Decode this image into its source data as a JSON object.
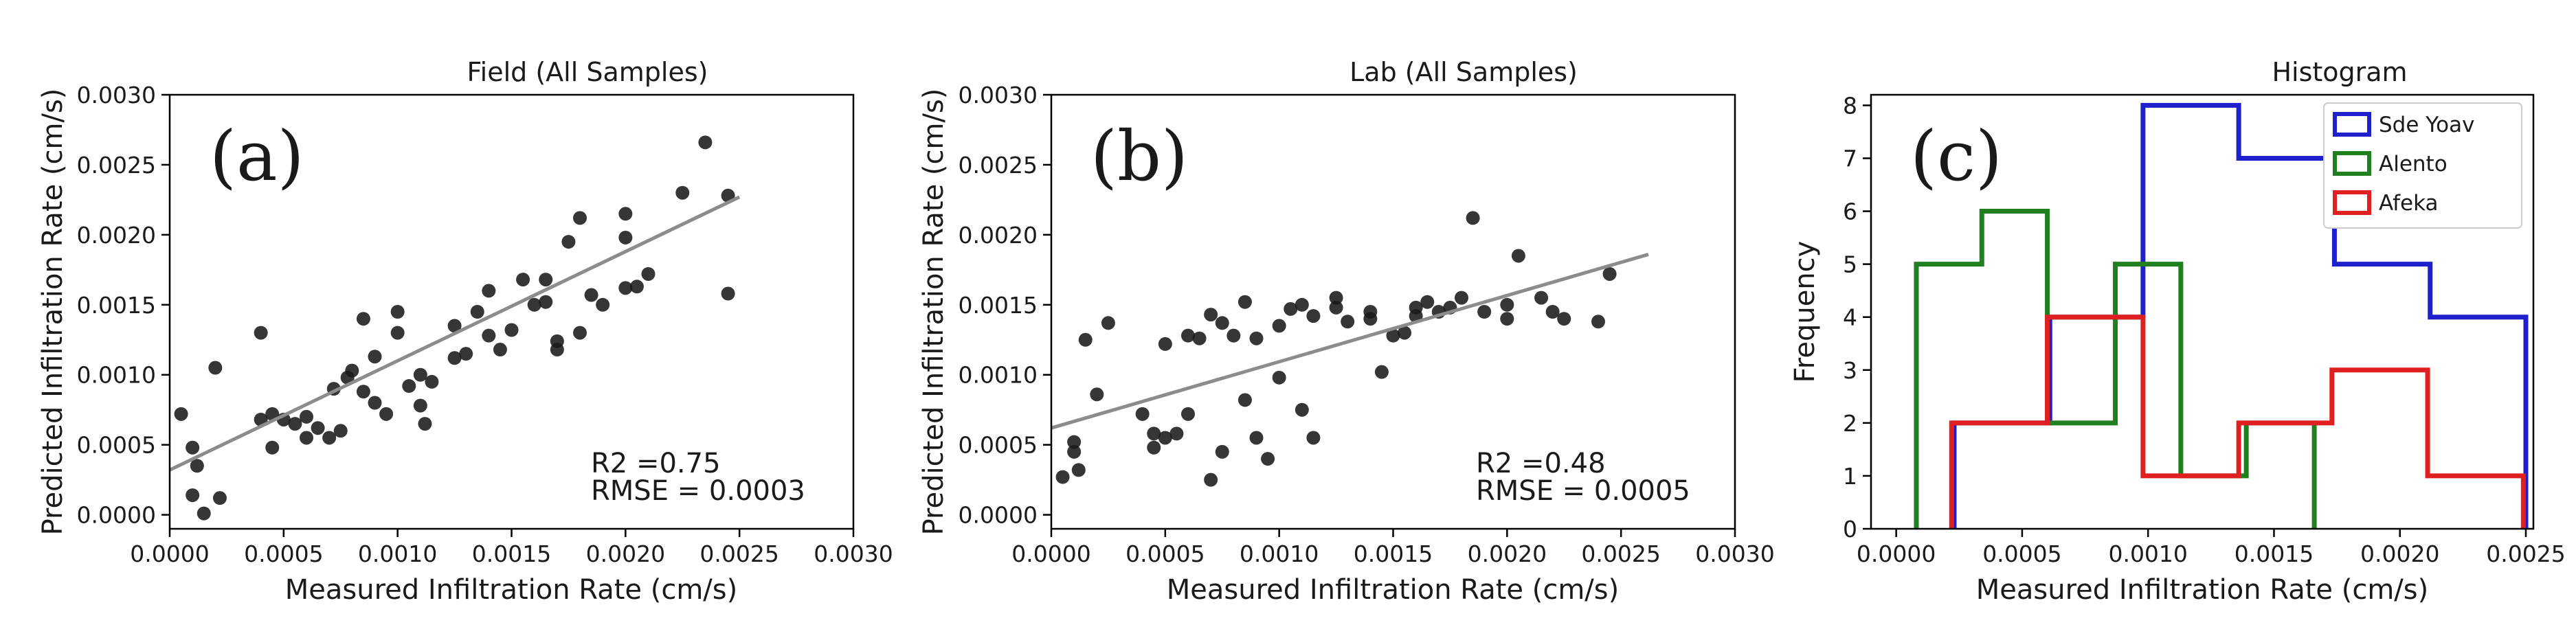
{
  "figure": {
    "panels": [
      "a",
      "b",
      "c"
    ]
  },
  "chart_data": [
    {
      "type": "scatter",
      "panel_label": "(a)",
      "title": "Field (All Samples)",
      "xlabel": "Measured Infiltration Rate (cm/s)",
      "ylabel": "Predicted Infiltration Rate (cm/s)",
      "xlim": [
        0,
        0.003
      ],
      "ylim": [
        -0.0001,
        0.003
      ],
      "xticks": [
        "0.0000",
        "0.0005",
        "0.0010",
        "0.0015",
        "0.0020",
        "0.0025",
        "0.0030"
      ],
      "yticks": [
        "0.0000",
        "0.0005",
        "0.0010",
        "0.0015",
        "0.0020",
        "0.0025",
        "0.0030"
      ],
      "stats": {
        "r2": "R2 =0.75",
        "rmse": "RMSE = 0.0003"
      },
      "fit_line": {
        "x": [
          0.0,
          0.0025
        ],
        "y": [
          0.00032,
          0.00227
        ]
      },
      "colors": {
        "points": "#1a1a1a",
        "fit": "#8c8c8c"
      },
      "points": [
        [
          5e-05,
          0.00072
        ],
        [
          0.0001,
          0.00048
        ],
        [
          0.0001,
          0.00014
        ],
        [
          0.00012,
          0.00035
        ],
        [
          0.00015,
          1e-05
        ],
        [
          0.0002,
          0.00105
        ],
        [
          0.00022,
          0.00012
        ],
        [
          0.0004,
          0.00068
        ],
        [
          0.0004,
          0.0013
        ],
        [
          0.00045,
          0.00048
        ],
        [
          0.00045,
          0.00072
        ],
        [
          0.0005,
          0.00068
        ],
        [
          0.00055,
          0.00065
        ],
        [
          0.0006,
          0.00055
        ],
        [
          0.0006,
          0.0007
        ],
        [
          0.00065,
          0.00062
        ],
        [
          0.0007,
          0.00055
        ],
        [
          0.00072,
          0.0009
        ],
        [
          0.00075,
          0.0006
        ],
        [
          0.00078,
          0.00098
        ],
        [
          0.0008,
          0.00103
        ],
        [
          0.00085,
          0.00088
        ],
        [
          0.00085,
          0.0014
        ],
        [
          0.0009,
          0.0008
        ],
        [
          0.0009,
          0.00113
        ],
        [
          0.00095,
          0.00072
        ],
        [
          0.001,
          0.0013
        ],
        [
          0.001,
          0.00145
        ],
        [
          0.00105,
          0.00092
        ],
        [
          0.0011,
          0.00078
        ],
        [
          0.0011,
          0.001
        ],
        [
          0.00112,
          0.00065
        ],
        [
          0.00115,
          0.00095
        ],
        [
          0.00125,
          0.00112
        ],
        [
          0.00125,
          0.00135
        ],
        [
          0.0013,
          0.00115
        ],
        [
          0.00135,
          0.00145
        ],
        [
          0.0014,
          0.00128
        ],
        [
          0.0014,
          0.0016
        ],
        [
          0.00145,
          0.00118
        ],
        [
          0.0015,
          0.00132
        ],
        [
          0.00155,
          0.00168
        ],
        [
          0.0016,
          0.0015
        ],
        [
          0.00165,
          0.00168
        ],
        [
          0.00165,
          0.00152
        ],
        [
          0.0017,
          0.00118
        ],
        [
          0.0017,
          0.00124
        ],
        [
          0.00175,
          0.00195
        ],
        [
          0.0018,
          0.00212
        ],
        [
          0.0018,
          0.0013
        ],
        [
          0.00185,
          0.00157
        ],
        [
          0.0019,
          0.0015
        ],
        [
          0.002,
          0.00162
        ],
        [
          0.002,
          0.00198
        ],
        [
          0.002,
          0.00215
        ],
        [
          0.00205,
          0.00163
        ],
        [
          0.0021,
          0.00172
        ],
        [
          0.00225,
          0.0023
        ],
        [
          0.00235,
          0.00266
        ],
        [
          0.00245,
          0.00228
        ],
        [
          0.00245,
          0.00158
        ]
      ]
    },
    {
      "type": "scatter",
      "panel_label": "(b)",
      "title": "Lab (All Samples)",
      "xlabel": "Measured Infiltration Rate (cm/s)",
      "ylabel": "Predicted Infiltration Rate (cm/s)",
      "xlim": [
        0,
        0.003
      ],
      "ylim": [
        -0.0001,
        0.003
      ],
      "xticks": [
        "0.0000",
        "0.0005",
        "0.0010",
        "0.0015",
        "0.0020",
        "0.0025",
        "0.0030"
      ],
      "yticks": [
        "0.0000",
        "0.0005",
        "0.0010",
        "0.0015",
        "0.0020",
        "0.0025",
        "0.0030"
      ],
      "stats": {
        "r2": "R2 =0.48",
        "rmse": "RMSE = 0.0005"
      },
      "fit_line": {
        "x": [
          0.0,
          0.00262
        ],
        "y": [
          0.00062,
          0.00186
        ]
      },
      "colors": {
        "points": "#1a1a1a",
        "fit": "#8c8c8c"
      },
      "points": [
        [
          5e-05,
          0.00027
        ],
        [
          0.0001,
          0.00045
        ],
        [
          0.0001,
          0.00052
        ],
        [
          0.00012,
          0.00032
        ],
        [
          0.00015,
          0.00125
        ],
        [
          0.0002,
          0.00086
        ],
        [
          0.00025,
          0.00137
        ],
        [
          0.0004,
          0.00072
        ],
        [
          0.00045,
          0.00058
        ],
        [
          0.00045,
          0.00048
        ],
        [
          0.0005,
          0.00055
        ],
        [
          0.0005,
          0.00122
        ],
        [
          0.00055,
          0.00058
        ],
        [
          0.0006,
          0.00072
        ],
        [
          0.0006,
          0.00128
        ],
        [
          0.00065,
          0.00126
        ],
        [
          0.0007,
          0.00025
        ],
        [
          0.0007,
          0.00143
        ],
        [
          0.00075,
          0.00045
        ],
        [
          0.00075,
          0.00137
        ],
        [
          0.0008,
          0.00128
        ],
        [
          0.00085,
          0.00082
        ],
        [
          0.00085,
          0.00152
        ],
        [
          0.0009,
          0.00055
        ],
        [
          0.0009,
          0.00126
        ],
        [
          0.00095,
          0.0004
        ],
        [
          0.001,
          0.00098
        ],
        [
          0.001,
          0.00135
        ],
        [
          0.00105,
          0.00147
        ],
        [
          0.0011,
          0.00075
        ],
        [
          0.0011,
          0.0015
        ],
        [
          0.00115,
          0.00055
        ],
        [
          0.00115,
          0.00142
        ],
        [
          0.00125,
          0.00148
        ],
        [
          0.00125,
          0.00155
        ],
        [
          0.0013,
          0.00138
        ],
        [
          0.0014,
          0.0014
        ],
        [
          0.0014,
          0.00145
        ],
        [
          0.00145,
          0.00102
        ],
        [
          0.0015,
          0.00128
        ],
        [
          0.00155,
          0.0013
        ],
        [
          0.0016,
          0.00148
        ],
        [
          0.0016,
          0.00142
        ],
        [
          0.00165,
          0.00152
        ],
        [
          0.0017,
          0.00145
        ],
        [
          0.00175,
          0.00148
        ],
        [
          0.0018,
          0.00155
        ],
        [
          0.00185,
          0.00212
        ],
        [
          0.0019,
          0.00145
        ],
        [
          0.002,
          0.0014
        ],
        [
          0.002,
          0.0015
        ],
        [
          0.00205,
          0.00185
        ],
        [
          0.00215,
          0.00155
        ],
        [
          0.0022,
          0.00145
        ],
        [
          0.00225,
          0.0014
        ],
        [
          0.0024,
          0.00138
        ],
        [
          0.00245,
          0.00172
        ]
      ]
    },
    {
      "type": "histogram",
      "panel_label": "(c)",
      "title": "Histogram",
      "xlabel": "Measured Infiltration Rate (cm/s)",
      "ylabel": "Frequency",
      "xlim": [
        -0.0001,
        0.00253
      ],
      "ylim": [
        0,
        8.2
      ],
      "xticks": [
        "0.0000",
        "0.0005",
        "0.0010",
        "0.0015",
        "0.0020",
        "0.0025"
      ],
      "yticks": [
        "0",
        "1",
        "2",
        "3",
        "4",
        "5",
        "6",
        "7",
        "8"
      ],
      "legend_position": "top-right",
      "series": [
        {
          "name": "Sde Yoav",
          "color": "#1f1fcc",
          "bin_edges": [
            0.00023,
            0.00061,
            0.00098,
            0.00136,
            0.00174,
            0.00212,
            0.0025
          ],
          "counts": [
            2,
            4,
            8,
            7,
            5,
            4
          ]
        },
        {
          "name": "Alento",
          "color": "#208020",
          "bin_edges": [
            8e-05,
            0.00034,
            0.0006,
            0.00087,
            0.00113,
            0.00139,
            0.00166
          ],
          "counts": [
            5,
            6,
            2,
            5,
            1,
            2
          ]
        },
        {
          "name": "Afeka",
          "color": "#e02020",
          "bin_edges": [
            0.00022,
            0.0006,
            0.00098,
            0.00136,
            0.00173,
            0.00211,
            0.00249
          ],
          "counts": [
            2,
            4,
            1,
            2,
            3,
            1
          ]
        }
      ]
    }
  ]
}
